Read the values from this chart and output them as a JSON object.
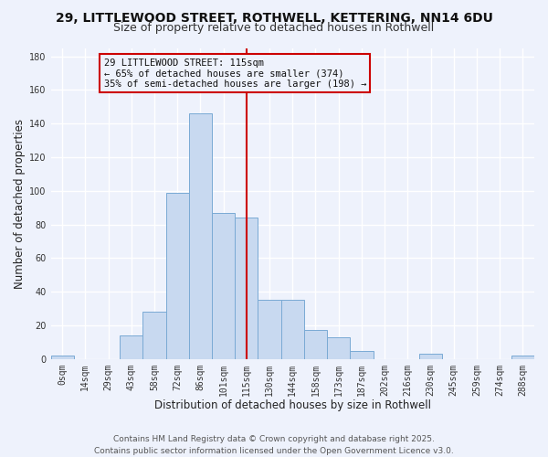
{
  "title": "29, LITTLEWOOD STREET, ROTHWELL, KETTERING, NN14 6DU",
  "subtitle": "Size of property relative to detached houses in Rothwell",
  "xlabel": "Distribution of detached houses by size in Rothwell",
  "ylabel": "Number of detached properties",
  "bar_labels": [
    "0sqm",
    "14sqm",
    "29sqm",
    "43sqm",
    "58sqm",
    "72sqm",
    "86sqm",
    "101sqm",
    "115sqm",
    "130sqm",
    "144sqm",
    "158sqm",
    "173sqm",
    "187sqm",
    "202sqm",
    "216sqm",
    "230sqm",
    "245sqm",
    "259sqm",
    "274sqm",
    "288sqm"
  ],
  "bar_heights": [
    2,
    0,
    0,
    14,
    28,
    99,
    146,
    87,
    84,
    35,
    35,
    17,
    13,
    5,
    0,
    0,
    3,
    0,
    0,
    0,
    2
  ],
  "bar_color": "#c8d9f0",
  "bar_edge_color": "#7aaad4",
  "vline_x": 8,
  "vline_color": "#cc0000",
  "annotation_title": "29 LITTLEWOOD STREET: 115sqm",
  "annotation_line1": "← 65% of detached houses are smaller (374)",
  "annotation_line2": "35% of semi-detached houses are larger (198) →",
  "annotation_box_edge": "#cc0000",
  "ylim": [
    0,
    185
  ],
  "yticks": [
    0,
    20,
    40,
    60,
    80,
    100,
    120,
    140,
    160,
    180
  ],
  "footer1": "Contains HM Land Registry data © Crown copyright and database right 2025.",
  "footer2": "Contains public sector information licensed under the Open Government Licence v3.0.",
  "bg_color": "#eef2fc",
  "grid_color": "#ffffff",
  "title_fontsize": 10,
  "subtitle_fontsize": 9,
  "axis_label_fontsize": 8.5,
  "tick_fontsize": 7,
  "annotation_fontsize": 7.5,
  "footer_fontsize": 6.5
}
